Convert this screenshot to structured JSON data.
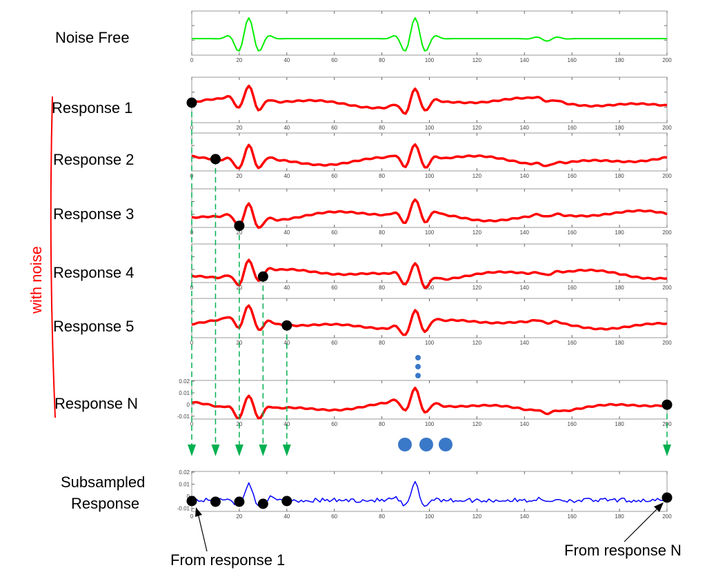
{
  "labels": {
    "noise_free": "Noise Free",
    "responses": [
      "Response 1",
      "Response 2",
      "Response 3",
      "Response 4",
      "Response 5",
      "Response N"
    ],
    "subsampled_line1": "Subsampled",
    "subsampled_line2": "Response",
    "with_noise": "with noise",
    "from_first": "From response 1",
    "from_last": "From response N"
  },
  "x_ticks": [
    "0",
    "20",
    "40",
    "60",
    "80",
    "100",
    "120",
    "140",
    "160",
    "180",
    "200"
  ],
  "y_ticks": [
    "0.02",
    "0.01",
    "0",
    "-0.01"
  ],
  "x_range": [
    0,
    200
  ],
  "sample_positions": [
    0,
    10,
    20,
    30,
    40,
    200
  ],
  "colors": {
    "noise_free": "#00ee00",
    "response": "#ff0000",
    "subsampled": "#0000ff",
    "arrow": "#00b050",
    "ellipsis_dots": "#3a78c8",
    "bracket": "#ff0000",
    "sample_dot": "#000000"
  }
}
